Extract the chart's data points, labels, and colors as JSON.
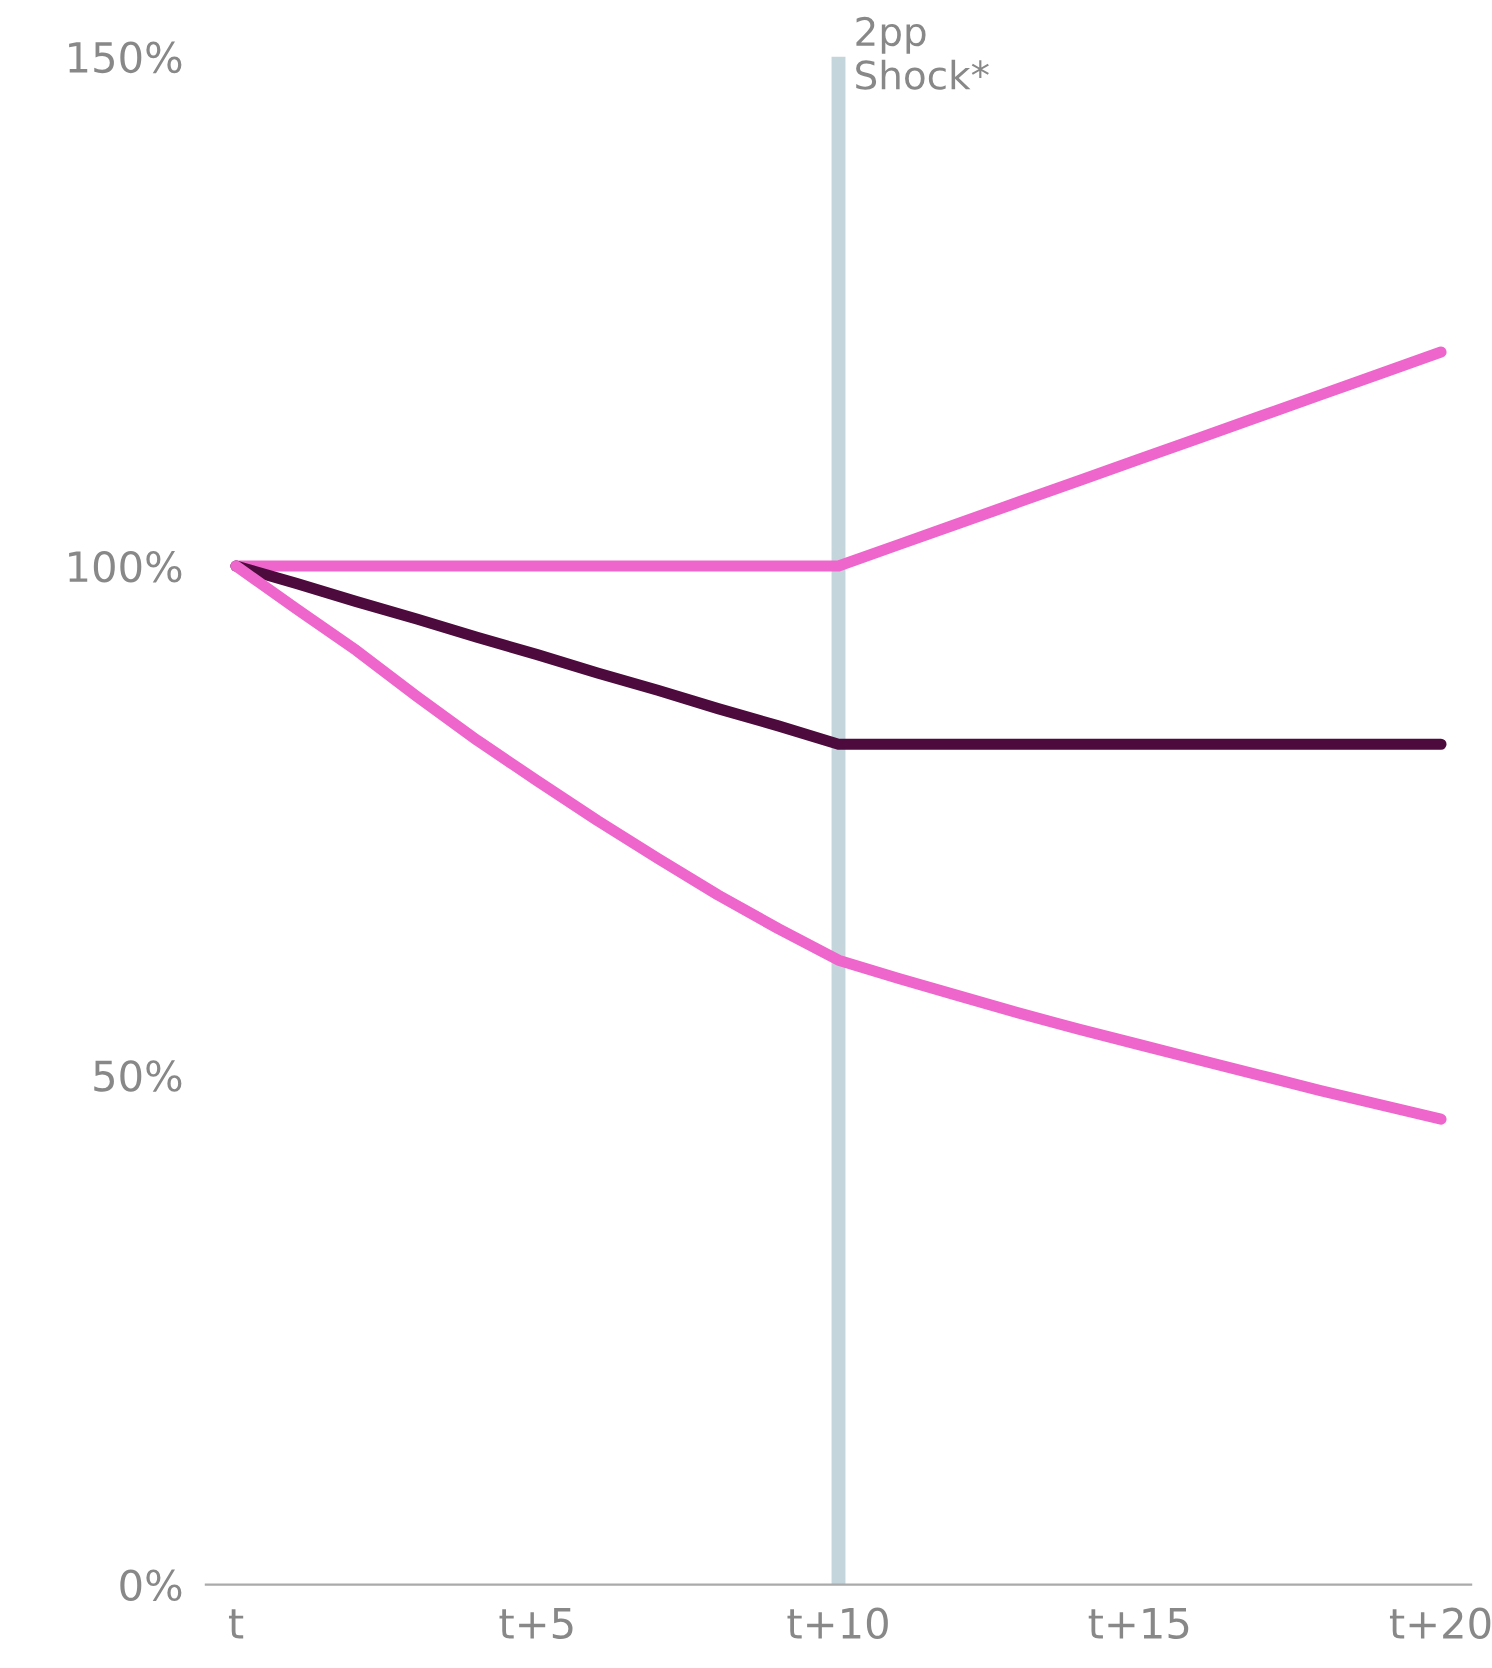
{
  "chart_data": {
    "type": "line",
    "categories": [
      "t",
      null,
      null,
      null,
      null,
      "t+5",
      null,
      null,
      null,
      null,
      "t+10",
      null,
      null,
      null,
      null,
      "t+15",
      null,
      null,
      null,
      null,
      "t+20"
    ],
    "series": [
      {
        "color": "#ee66cc",
        "values": [
          100,
          100,
          100,
          100,
          100,
          100,
          100,
          100,
          100,
          100,
          100,
          102.1,
          104.2,
          106.3,
          108.4,
          110.5,
          112.6,
          114.7,
          116.8,
          118.9,
          121
        ]
      },
      {
        "color": "#4d0a3c",
        "values": [
          100,
          98.3,
          96.5,
          94.8,
          93,
          91.3,
          89.5,
          87.8,
          86,
          84.3,
          82.5,
          82.5,
          82.5,
          82.5,
          82.5,
          82.5,
          82.5,
          82.5,
          82.5,
          82.5,
          82.5
        ]
      },
      {
        "color": "#ee66cc",
        "values": [
          100,
          95.8,
          91.7,
          87.2,
          82.9,
          78.9,
          75,
          71.3,
          67.7,
          64.4,
          61.3,
          59.5,
          57.8,
          56.1,
          54.5,
          53,
          51.5,
          50,
          48.5,
          47.1,
          45.7
        ]
      }
    ],
    "ylim": [
      0,
      150
    ],
    "yticks": [
      {
        "value": 0,
        "label": "0%"
      },
      {
        "value": 50,
        "label": "50%"
      },
      {
        "value": 100,
        "label": "100%"
      },
      {
        "value": 150,
        "label": "150%"
      }
    ],
    "ref_lines": [
      {
        "axis": "x",
        "value": "t+10",
        "label": "2pp\nShock*",
        "color": "#c5d5dc"
      }
    ],
    "grid": false,
    "legend": false,
    "marker": "none",
    "line_style": "solid"
  }
}
